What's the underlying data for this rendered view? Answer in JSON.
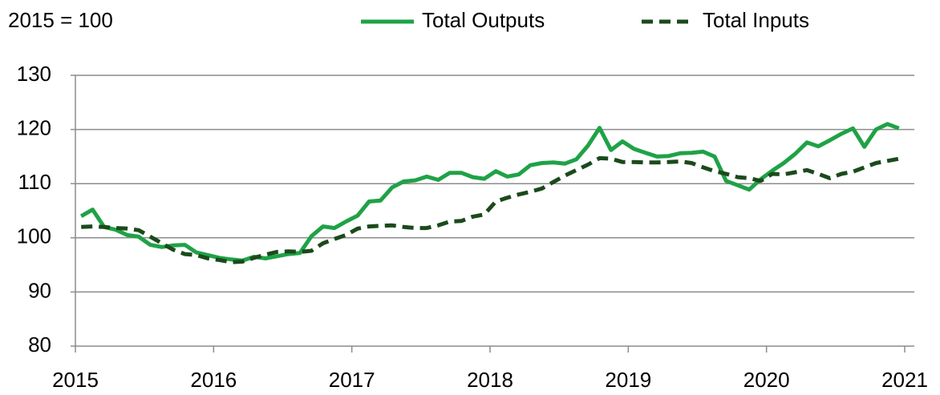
{
  "chart_data": {
    "type": "line",
    "subtitle": "2015 = 100",
    "x": [
      2015.042,
      2015.125,
      2015.208,
      2015.292,
      2015.375,
      2015.458,
      2015.542,
      2015.625,
      2015.708,
      2015.792,
      2015.875,
      2015.958,
      2016.042,
      2016.125,
      2016.208,
      2016.292,
      2016.375,
      2016.458,
      2016.542,
      2016.625,
      2016.708,
      2016.792,
      2016.875,
      2016.958,
      2017.042,
      2017.125,
      2017.208,
      2017.292,
      2017.375,
      2017.458,
      2017.542,
      2017.625,
      2017.708,
      2017.792,
      2017.875,
      2017.958,
      2018.042,
      2018.125,
      2018.208,
      2018.292,
      2018.375,
      2018.458,
      2018.542,
      2018.625,
      2018.708,
      2018.792,
      2018.875,
      2018.958,
      2019.042,
      2019.125,
      2019.208,
      2019.292,
      2019.375,
      2019.458,
      2019.542,
      2019.625,
      2019.708,
      2019.792,
      2019.875,
      2019.958,
      2020.042,
      2020.125,
      2020.208,
      2020.292,
      2020.375,
      2020.458,
      2020.542,
      2020.625,
      2020.708,
      2020.792,
      2020.875,
      2020.958
    ],
    "series": [
      {
        "name": "Total Outputs",
        "color": "#1fa246",
        "dash": false,
        "values": [
          104,
          105.2,
          102,
          101.5,
          100.5,
          100.2,
          98.7,
          98.3,
          98.6,
          98.7,
          97.3,
          96.8,
          96.3,
          96.0,
          95.8,
          96.5,
          96.2,
          96.6,
          97,
          97.2,
          100.3,
          102.1,
          101.8,
          103,
          104.1,
          106.7,
          106.9,
          109.3,
          110.4,
          110.6,
          111.3,
          110.7,
          112,
          112,
          111.2,
          110.9,
          112.3,
          111.3,
          111.7,
          113.4,
          113.8,
          113.9,
          113.7,
          114.5,
          117,
          120.3,
          116.2,
          117.8,
          116.4,
          115.7,
          115,
          115.1,
          115.6,
          115.7,
          115.9,
          115,
          110.5,
          109.7,
          108.9,
          110.8,
          112.4,
          113.8,
          115.5,
          117.6,
          116.9,
          118,
          119.2,
          120.2,
          116.8,
          120,
          121,
          120.2
        ]
      },
      {
        "name": "Total Inputs",
        "color": "#1b4a1b",
        "dash": true,
        "values": [
          102,
          102.1,
          102,
          101.8,
          101.7,
          101.4,
          100.2,
          99,
          97.8,
          97,
          96.8,
          96.2,
          95.9,
          95.5,
          95.6,
          96.3,
          96.9,
          97.4,
          97.5,
          97.4,
          97.6,
          99,
          99.8,
          100.5,
          101.7,
          102.1,
          102.2,
          102.3,
          102,
          101.8,
          101.8,
          102.3,
          103,
          103.1,
          103.9,
          104.3,
          106.7,
          107.4,
          108,
          108.5,
          109.1,
          110.3,
          111.5,
          112.5,
          113.5,
          114.7,
          114.6,
          114,
          114,
          113.9,
          113.9,
          114,
          114.1,
          113.8,
          113,
          112.3,
          111.8,
          111.2,
          111,
          110.5,
          111.8,
          111.7,
          112.1,
          112.5,
          111.8,
          111,
          111.8,
          112.2,
          113,
          113.8,
          114.2,
          114.6
        ]
      }
    ],
    "xlim": [
      2015,
      2021
    ],
    "xticks": [
      2015,
      2016,
      2017,
      2018,
      2019,
      2020,
      2021
    ],
    "ylim": [
      80,
      130
    ],
    "yticks": [
      80,
      90,
      100,
      110,
      120,
      130
    ],
    "grid": true,
    "legend": "top"
  }
}
